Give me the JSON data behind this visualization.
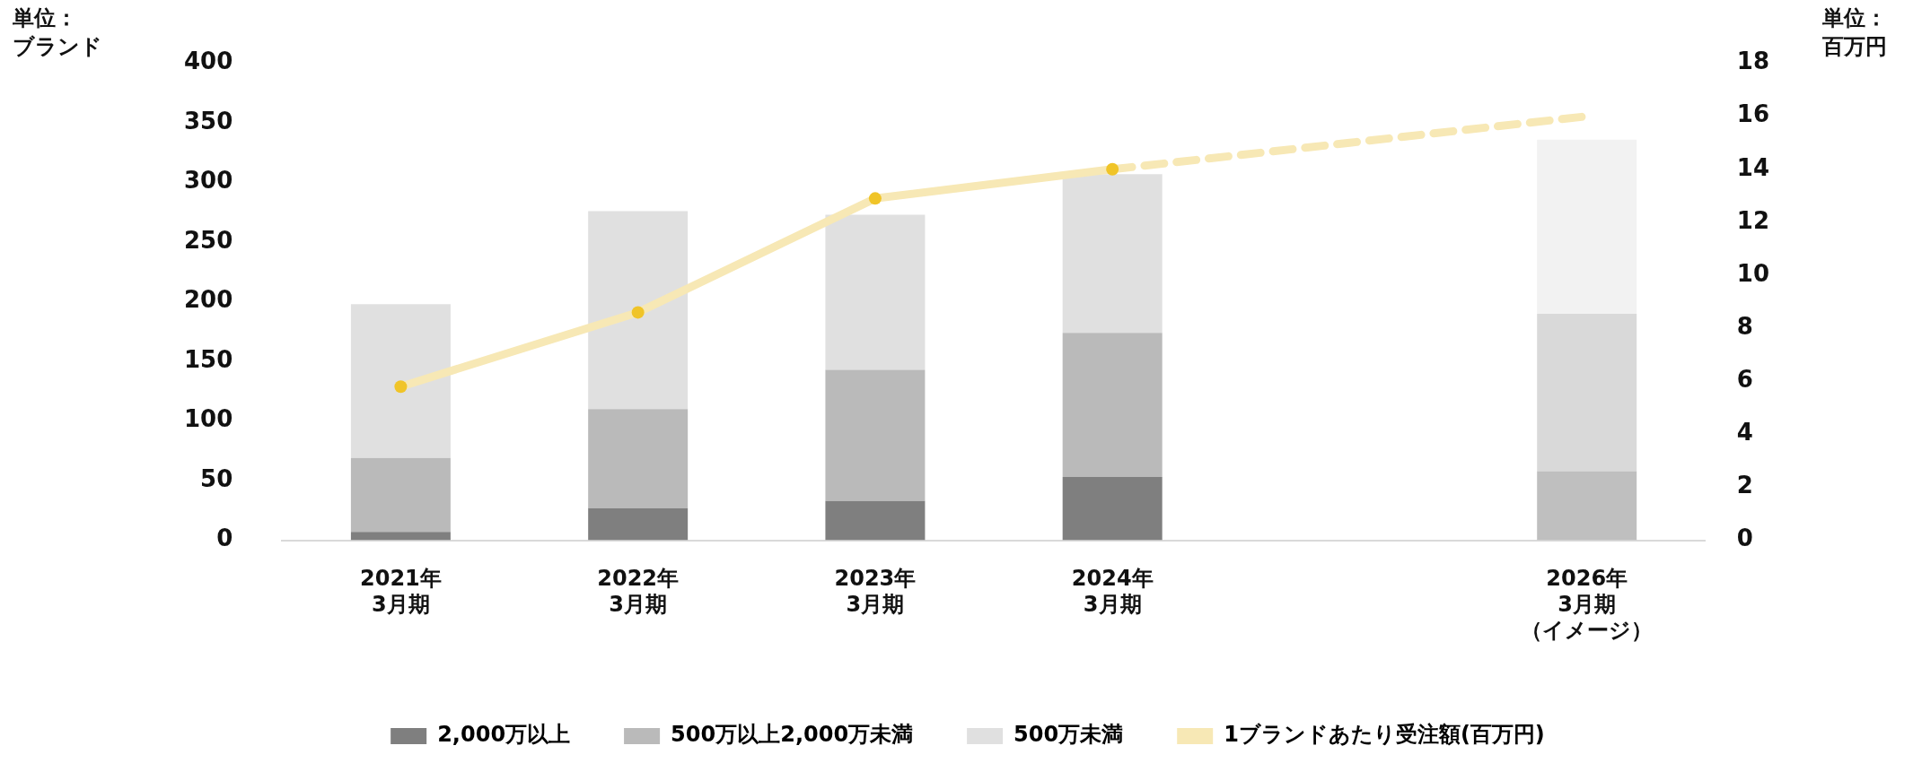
{
  "chart_data": {
    "type": "bar",
    "stacked": true,
    "ylabel": "単位：ブランド",
    "y2label": "単位：百万円",
    "categories": [
      "2021年3月期",
      "2022年3月期",
      "2023年3月期",
      "2024年3月期",
      null,
      "2026年3月期（イメージ）"
    ],
    "ylim": [
      0,
      400
    ],
    "yticks": [
      0,
      50,
      100,
      150,
      200,
      250,
      300,
      350,
      400
    ],
    "y2lim": [
      0,
      18
    ],
    "y2ticks": [
      0,
      2,
      4,
      6,
      8,
      10,
      12,
      14,
      16,
      18
    ],
    "grid": false,
    "legend": "bottom",
    "series": [
      {
        "name": "2,000万以上",
        "color": "#7f7f7f",
        "colors": [
          "#7f7f7f",
          "#7f7f7f",
          "#7f7f7f",
          "#7f7f7f",
          "#7f7f7f",
          "#bfbfbf"
        ],
        "values": [
          7,
          27,
          33,
          53,
          null,
          58
        ]
      },
      {
        "name": "500万以上2,000万未満",
        "color": "#bababa",
        "colors": [
          "#bababa",
          "#bababa",
          "#bababa",
          "#bababa",
          "#bababa",
          "#d9d9d9"
        ],
        "values": [
          62,
          83,
          110,
          121,
          null,
          132
        ]
      },
      {
        "name": "500万未満",
        "color": "#e0e0e0",
        "colors": [
          "#e0e0e0",
          "#e0e0e0",
          "#e0e0e0",
          "#e0e0e0",
          "#e0e0e0",
          "#f2f2f2"
        ],
        "values": [
          129,
          166,
          130,
          133,
          null,
          146
        ]
      },
      {
        "name": "1ブランドあたり受注額(百万円)",
        "type": "line",
        "axis": "y2",
        "color": "#f7e8b5",
        "marker": "circle",
        "line_style": "solid",
        "values": [
          5.8,
          8.6,
          12.9,
          14.0,
          null,
          null
        ]
      },
      {
        "type": "line",
        "axis": "y2",
        "color": "#f7e8b5",
        "marker": "none",
        "line_style": "dashed",
        "values": [
          null,
          null,
          null,
          14.0,
          15.0,
          16.0
        ]
      }
    ]
  }
}
